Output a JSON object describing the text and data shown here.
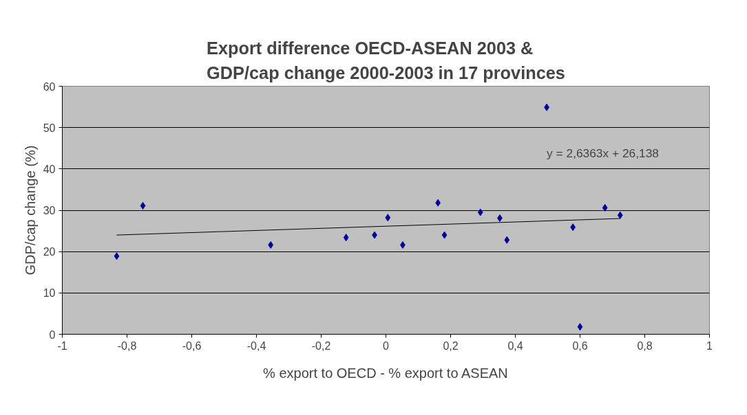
{
  "chart_data": {
    "type": "scatter",
    "title": "Export difference OECD-ASEAN 2003 & GDP/cap change 2000-2003 in 17 provinces",
    "xlabel": "% export to OECD - % export to ASEAN",
    "ylabel": "GDP/cap change (%)",
    "xlim": [
      -1,
      1
    ],
    "ylim": [
      0,
      60
    ],
    "xticks": [
      {
        "value": -1,
        "label": "-1"
      },
      {
        "value": -0.8,
        "label": "-0,8"
      },
      {
        "value": -0.6,
        "label": "-0,6"
      },
      {
        "value": -0.4,
        "label": "-0,4"
      },
      {
        "value": -0.2,
        "label": "-0,2"
      },
      {
        "value": 0,
        "label": "0"
      },
      {
        "value": 0.2,
        "label": "0,2"
      },
      {
        "value": 0.4,
        "label": "0,4"
      },
      {
        "value": 0.6,
        "label": "0,6"
      },
      {
        "value": 0.8,
        "label": "0,8"
      },
      {
        "value": 1,
        "label": "1"
      }
    ],
    "yticks": [
      0,
      10,
      20,
      30,
      40,
      50,
      60
    ],
    "grid": "y",
    "annotations": [
      "y = 2,6363x + 26,138"
    ],
    "series": [
      {
        "marker": "diamond",
        "color": "#000099",
        "x": [
          -0.832,
          -0.751,
          -0.356,
          -0.123,
          -0.035,
          0.006,
          0.052,
          0.161,
          0.181,
          0.292,
          0.352,
          0.374,
          0.497,
          0.578,
          0.6,
          0.677,
          0.724
        ],
        "values": [
          18.9,
          31.1,
          21.6,
          23.4,
          24.0,
          28.2,
          21.6,
          31.8,
          24.0,
          29.5,
          28.1,
          22.8,
          54.9,
          25.9,
          1.8,
          30.6,
          28.8
        ]
      },
      {
        "type": "line",
        "color": "#000000",
        "x": [
          -0.832,
          0.724
        ],
        "values": [
          24,
          28
        ]
      }
    ]
  }
}
